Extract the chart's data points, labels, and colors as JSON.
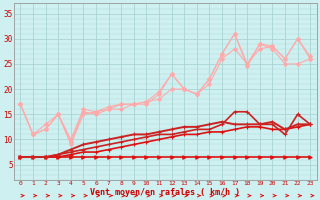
{
  "xlabel": "Vent moyen/en rafales ( km/h )",
  "bg_color": "#cff0f0",
  "grid_color": "#aad4d4",
  "x_values": [
    0,
    1,
    2,
    3,
    4,
    5,
    6,
    7,
    8,
    9,
    10,
    11,
    12,
    13,
    14,
    15,
    16,
    17,
    18,
    19,
    20,
    21,
    22,
    23
  ],
  "ylim": [
    2,
    37
  ],
  "yticks": [
    5,
    10,
    15,
    20,
    25,
    30,
    35
  ],
  "series": [
    {
      "data": [
        6.5,
        6.5,
        6.5,
        6.5,
        6.5,
        6.5,
        6.5,
        6.5,
        6.5,
        6.5,
        6.5,
        6.5,
        6.5,
        6.5,
        6.5,
        6.5,
        6.5,
        6.5,
        6.5,
        6.5,
        6.5,
        6.5,
        6.5,
        6.5
      ],
      "color": "#dd1111",
      "lw": 1.2,
      "marker": ">",
      "ms": 2.5,
      "zorder": 5
    },
    {
      "data": [
        6.5,
        6.5,
        6.5,
        6.5,
        7,
        7.5,
        7.5,
        8,
        8.5,
        9,
        9.5,
        10,
        10.5,
        11,
        11,
        11.5,
        11.5,
        12,
        12.5,
        12.5,
        12,
        12,
        12.5,
        13
      ],
      "color": "#dd1111",
      "lw": 1.2,
      "marker": "+",
      "ms": 3.5,
      "zorder": 5
    },
    {
      "data": [
        6.5,
        6.5,
        6.5,
        7,
        7.5,
        8,
        8.5,
        9,
        9.5,
        10,
        10.5,
        11,
        11,
        11.5,
        12,
        12,
        13,
        15.5,
        15.5,
        13,
        13,
        11,
        15,
        13
      ],
      "color": "#cc2222",
      "lw": 1.2,
      "marker": "+",
      "ms": 3.5,
      "zorder": 5
    },
    {
      "data": [
        6.5,
        6.5,
        6.5,
        7,
        8,
        9,
        9.5,
        10,
        10.5,
        11,
        11,
        11.5,
        12,
        12.5,
        12.5,
        13,
        13.5,
        13,
        13,
        13,
        13.5,
        12,
        13,
        13
      ],
      "color": "#cc2222",
      "lw": 1.4,
      "marker": "+",
      "ms": 3.5,
      "zorder": 5
    },
    {
      "data": [
        17,
        11,
        13,
        15,
        9,
        15,
        15.5,
        16,
        16,
        17,
        17.5,
        18,
        20,
        20,
        19,
        21,
        26,
        28,
        25,
        28,
        28.5,
        26,
        30,
        26
      ],
      "color": "#ffaaaa",
      "lw": 0.8,
      "marker": "D",
      "ms": 2.0,
      "zorder": 3
    },
    {
      "data": [
        17,
        11,
        12,
        15,
        9.5,
        15.5,
        15,
        16,
        17,
        17,
        17,
        19,
        23,
        20,
        19,
        22,
        27,
        31,
        24.5,
        29,
        28,
        25,
        25,
        26
      ],
      "color": "#ffaaaa",
      "lw": 0.8,
      "marker": "D",
      "ms": 2.0,
      "zorder": 3
    },
    {
      "data": [
        17,
        11,
        12,
        15,
        10,
        16,
        15.5,
        16.5,
        17,
        17,
        17.5,
        19.5,
        23,
        20,
        19,
        22,
        27,
        31,
        25,
        29,
        28.5,
        26,
        30,
        26.5
      ],
      "color": "#ffaaaa",
      "lw": 0.8,
      "marker": "D",
      "ms": 2.0,
      "zorder": 3
    }
  ],
  "arrow_color": "#dd1111"
}
